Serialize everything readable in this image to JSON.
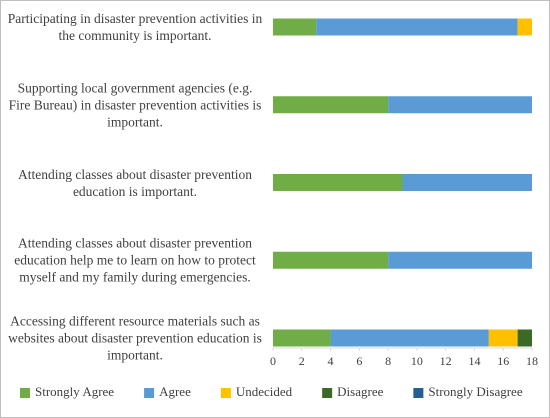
{
  "chart_data": {
    "type": "stacked-bar-horizontal",
    "categories": [
      "Participating in disaster prevention activities in the community is important.",
      "Supporting local government agencies (e.g. Fire Bureau) in disaster prevention activities is important.",
      "Attending classes about disaster prevention education is important.",
      "Attending classes about disaster prevention education help me to learn on how to protect myself and my family during emergencies.",
      "Accessing different resource materials such as websites about disaster prevention education is important."
    ],
    "series": [
      {
        "name": "Strongly Agree",
        "color": "#70ad47",
        "values": [
          3,
          8,
          9,
          8,
          4
        ]
      },
      {
        "name": "Agree",
        "color": "#5b9bd5",
        "values": [
          14,
          10,
          9,
          10,
          11
        ]
      },
      {
        "name": "Undecided",
        "color": "#ffc000",
        "values": [
          1,
          0,
          0,
          0,
          2
        ]
      },
      {
        "name": "Disagree",
        "color": "#3b6a27",
        "values": [
          0,
          0,
          0,
          0,
          1
        ]
      },
      {
        "name": "Strongly Disagree",
        "color": "#255e91",
        "values": [
          0,
          0,
          0,
          0,
          0
        ]
      }
    ],
    "xlim": [
      0,
      18
    ],
    "xticks": [
      0,
      2,
      4,
      6,
      8,
      10,
      12,
      14,
      16,
      18
    ],
    "legend": "bottom"
  }
}
